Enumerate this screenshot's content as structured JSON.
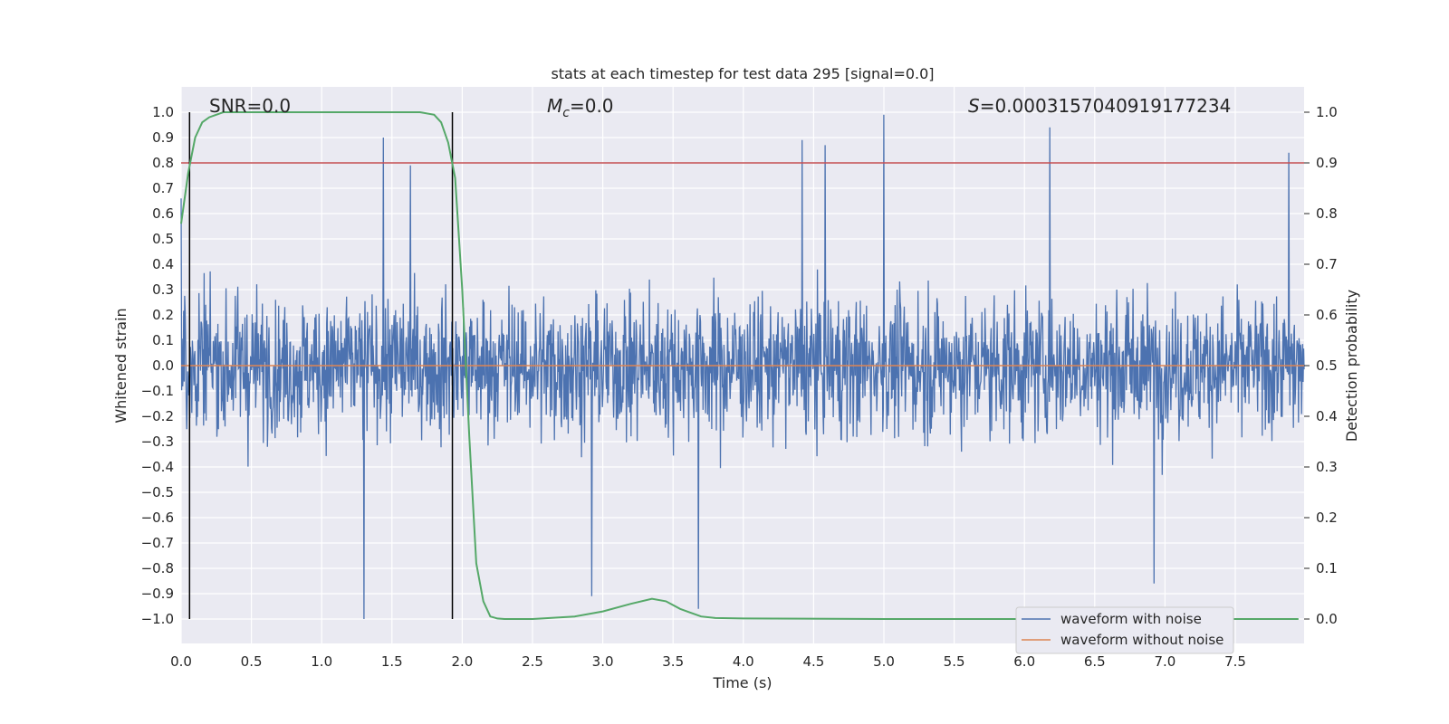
{
  "chart_data": {
    "type": "line",
    "title": "stats at each timestep for test data 295 [signal=0.0]",
    "xlabel": "Time (s)",
    "ylabel": "Whitened strain",
    "ylabel_right": "Detection probability",
    "xlim": [
      0.0,
      8.0
    ],
    "ylim": [
      -1.1,
      1.1
    ],
    "ylim_right": [
      -0.05,
      1.05
    ],
    "xticks": [
      "0.0",
      "0.5",
      "1.0",
      "1.5",
      "2.0",
      "2.5",
      "3.0",
      "3.5",
      "4.0",
      "4.5",
      "5.0",
      "5.5",
      "6.0",
      "6.5",
      "7.0",
      "7.5"
    ],
    "yticks": [
      "1.0",
      "0.9",
      "0.8",
      "0.7",
      "0.6",
      "0.5",
      "0.4",
      "0.3",
      "0.2",
      "0.1",
      "0.0",
      "−0.1",
      "−0.2",
      "−0.3",
      "−0.4",
      "−0.5",
      "−0.6",
      "−0.7",
      "−0.8",
      "−0.9",
      "−1.0"
    ],
    "yticks_right": [
      "1.0",
      "0.9",
      "0.8",
      "0.7",
      "0.6",
      "0.5",
      "0.4",
      "0.3",
      "0.2",
      "0.1",
      "0.0"
    ],
    "grid": true,
    "annotations": {
      "snr": "SNR=0.0",
      "mc_symbol": "M",
      "mc_sub": "c",
      "mc_value": "=0.0",
      "s_symbol": "S",
      "s_value": "=0.0003157040919177234"
    },
    "threshold": 0.8,
    "vlines": [
      0.06,
      1.93
    ],
    "noise": {
      "description": "whitened strain noise, dense, amplitude mostly within ±0.5",
      "range": [
        0.0,
        7.99
      ],
      "peaks": [
        {
          "x": 0.0,
          "y": 0.66
        },
        {
          "x": 1.3,
          "y": -1.0
        },
        {
          "x": 1.44,
          "y": 0.9
        },
        {
          "x": 1.63,
          "y": 0.79
        },
        {
          "x": 2.92,
          "y": -0.91
        },
        {
          "x": 3.68,
          "y": -0.96
        },
        {
          "x": 4.42,
          "y": 0.89
        },
        {
          "x": 4.58,
          "y": 0.87
        },
        {
          "x": 5.0,
          "y": 0.99
        },
        {
          "x": 6.18,
          "y": 0.94
        },
        {
          "x": 6.92,
          "y": -0.86
        },
        {
          "x": 7.88,
          "y": 0.84
        }
      ]
    },
    "series": [
      {
        "name": "waveform with noise",
        "color": "#4c72b0"
      },
      {
        "name": "waveform without noise",
        "color": "#dd8452",
        "values_constant": 0.0
      },
      {
        "name": "detection probability",
        "color": "#55a868",
        "axis": "right",
        "x": [
          0.0,
          0.05,
          0.1,
          0.15,
          0.2,
          0.3,
          0.4,
          0.6,
          1.0,
          1.5,
          1.7,
          1.8,
          1.85,
          1.9,
          1.95,
          2.0,
          2.05,
          2.1,
          2.15,
          2.2,
          2.25,
          2.3,
          2.5,
          2.8,
          3.0,
          3.2,
          3.35,
          3.45,
          3.55,
          3.7,
          3.8,
          4.0,
          5.0,
          6.0,
          7.0,
          7.95
        ],
        "values": [
          0.78,
          0.88,
          0.95,
          0.98,
          0.99,
          1.0,
          1.0,
          1.0,
          1.0,
          1.0,
          1.0,
          0.995,
          0.98,
          0.94,
          0.87,
          0.65,
          0.36,
          0.11,
          0.035,
          0.005,
          0.001,
          0.0,
          0.0,
          0.005,
          0.015,
          0.03,
          0.04,
          0.035,
          0.02,
          0.005,
          0.002,
          0.001,
          0.0,
          0.0,
          0.0,
          0.0
        ]
      },
      {
        "name": "threshold",
        "color": "#c44e52",
        "values_constant": 0.8
      }
    ],
    "legend": {
      "placement": "lower-right",
      "entries": [
        {
          "label": "waveform with noise",
          "color": "#4c72b0"
        },
        {
          "label": "waveform without noise",
          "color": "#dd8452"
        }
      ]
    }
  }
}
